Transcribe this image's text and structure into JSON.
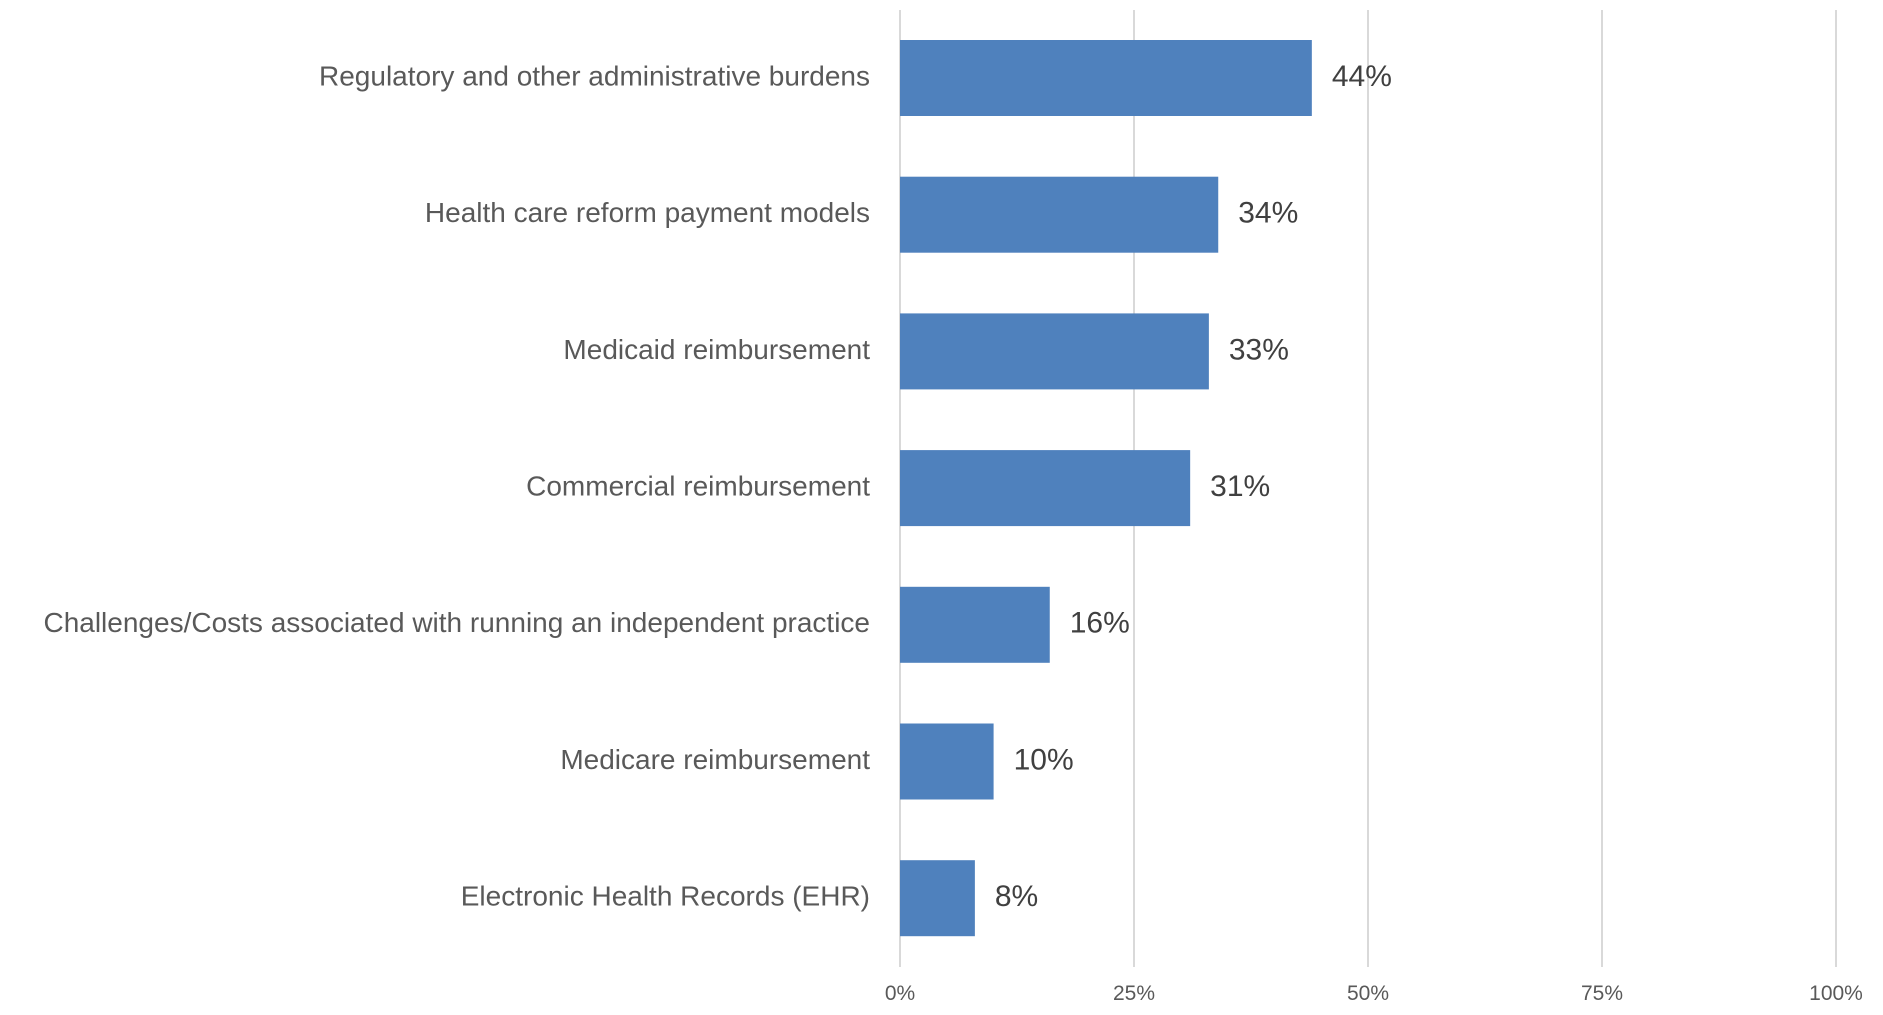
{
  "chart_data": {
    "type": "bar",
    "orientation": "horizontal",
    "title": "",
    "xlabel": "",
    "ylabel": "",
    "categories": [
      "Regulatory and other administrative burdens",
      "Health care reform payment models",
      "Medicaid reimbursement",
      "Commercial reimbursement",
      "Challenges/Costs associated with running an independent practice",
      "Medicare reimbursement",
      "Electronic Health Records (EHR)"
    ],
    "values": [
      44,
      34,
      33,
      31,
      16,
      10,
      8
    ],
    "value_labels": [
      "44%",
      "34%",
      "33%",
      "31%",
      "16%",
      "10%",
      "8%"
    ],
    "xlim": [
      0,
      100
    ],
    "xticks": [
      0,
      25,
      50,
      75,
      100
    ],
    "xtick_labels": [
      "0%",
      "25%",
      "50%",
      "75%",
      "100%"
    ],
    "grid": "vertical",
    "legend": "none",
    "colors": {
      "bar": "#4f81bd",
      "grid": "#d9d9d9",
      "category_text": "#595959",
      "value_text": "#404040",
      "tick_text": "#595959"
    }
  }
}
